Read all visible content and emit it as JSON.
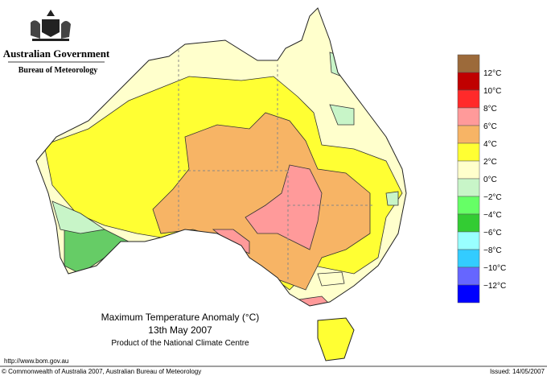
{
  "header": {
    "government": "Australian Government",
    "bureau": "Bureau of Meteorology"
  },
  "title": {
    "main": "Maximum Temperature Anomaly (°C)",
    "date": "13th May 2007",
    "product": "Product of the National Climate Centre"
  },
  "legend": {
    "colors": [
      "#9c6a3a",
      "#c00000",
      "#ff2a2a",
      "#ff9a9a",
      "#f7b465",
      "#ffff33",
      "#ffffcc",
      "#c8f5c8",
      "#66ff66",
      "#33cc33",
      "#99ffff",
      "#33ccff",
      "#6666ff",
      "#0000ff"
    ],
    "labels": [
      "12°C",
      "10°C",
      "8°C",
      "6°C",
      "4°C",
      "2°C",
      "0°C",
      "−2°C",
      "−4°C",
      "−6°C",
      "−8°C",
      "−10°C",
      "−12°C"
    ]
  },
  "footer": {
    "url": "http://www.bom.gov.au",
    "copyright": "© Commonwealth of Australia 2007, Australian Bureau of Meteorology",
    "issued": "Issued: 14/05/2007"
  }
}
